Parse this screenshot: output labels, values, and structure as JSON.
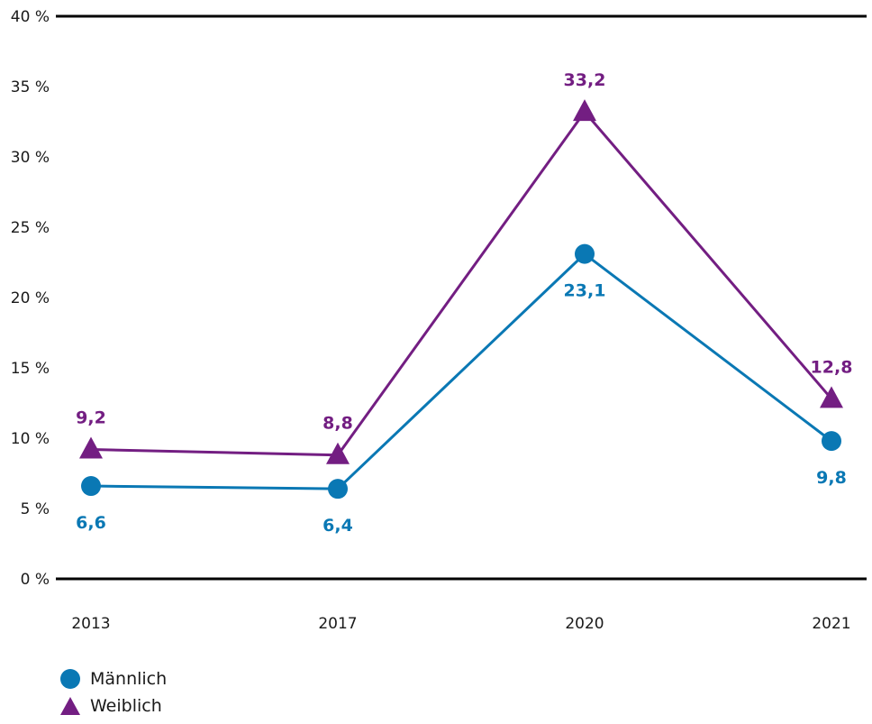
{
  "chart_data": {
    "type": "line",
    "categories": [
      "2013",
      "2017",
      "2020",
      "2021"
    ],
    "y_ticks": [
      "0 %",
      "5 %",
      "10 %",
      "15 %",
      "20 %",
      "25 %",
      "30 %",
      "35 %",
      "40 %"
    ],
    "ylim": [
      0,
      40
    ],
    "grid": false,
    "legend_position": "bottom-left",
    "series": [
      {
        "name": "Männlich",
        "values": [
          6.6,
          6.4,
          23.1,
          9.8
        ],
        "labels": [
          "6,6",
          "6,4",
          "23,1",
          "9,8"
        ],
        "color": "#0a78b4",
        "marker": "circle"
      },
      {
        "name": "Weiblich",
        "values": [
          9.2,
          8.8,
          33.2,
          12.8
        ],
        "labels": [
          "9,2",
          "8,8",
          "33,2",
          "12,8"
        ],
        "color": "#731e82",
        "marker": "triangle"
      }
    ]
  }
}
